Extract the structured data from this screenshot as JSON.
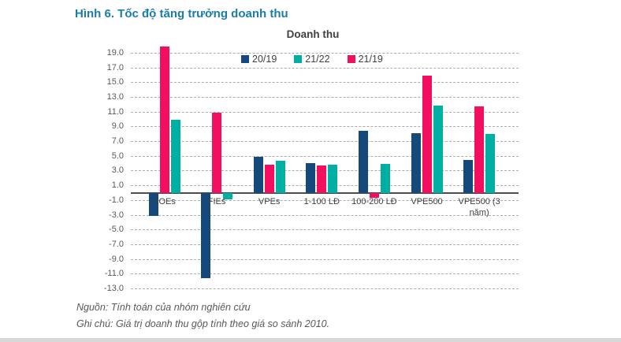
{
  "page": {
    "figure_title": "Hình 6. Tốc độ tăng trưởng doanh thu",
    "source_note": "Nguồn: Tính toán của nhóm nghiên cứu",
    "method_note": "Ghi chú: Giá trị doanh thu gộp tính theo giá so sánh 2010."
  },
  "colors": {
    "figure_title": "#1B7CA8",
    "chart_title_text": "#404040",
    "legend_text": "#404040",
    "series_20_19": "#15497B",
    "series_21_22": "#00AFA4",
    "series_21_19": "#F20F5F",
    "gridline": "#ABABAB",
    "axis_line": "#4D4D4D",
    "tick_text": "#595959",
    "category_text": "#404040",
    "note_text": "#595959",
    "bottom_strip": "#D8D8D8"
  },
  "chart_data": {
    "type": "bar",
    "title": "Doanh thu",
    "categories": [
      "SOEs",
      "FIEs",
      "VPEs",
      "1-100 LĐ",
      "100-200 LĐ",
      "VPE500",
      "VPE500 (3 năm)"
    ],
    "series": [
      {
        "name": "20/19",
        "color": "#15497B",
        "values": [
          -3.1,
          -11.6,
          4.9,
          4.1,
          8.4,
          8.1,
          4.5
        ]
      },
      {
        "name": "21/22",
        "color": "#00AFA4",
        "values": [
          10.0,
          -0.9,
          4.4,
          3.8,
          4.0,
          11.9,
          8.0
        ]
      },
      {
        "name": "21/19",
        "color": "#F20F5F",
        "values": [
          19.9,
          10.9,
          3.9,
          3.7,
          -0.6,
          15.9,
          11.8
        ]
      }
    ],
    "group_order": [
      0,
      2,
      1
    ],
    "yticks": [
      19,
      17,
      15,
      13,
      11,
      9,
      7,
      5,
      3,
      1,
      -1,
      -3,
      -5,
      -7,
      -9,
      -11,
      -13
    ],
    "ytick_format": "one_decimal",
    "ylim": [
      -13.0,
      19.0
    ],
    "grid": "horizontal-dashed",
    "legend_position": "top-center",
    "xlabel": "",
    "ylabel": ""
  }
}
